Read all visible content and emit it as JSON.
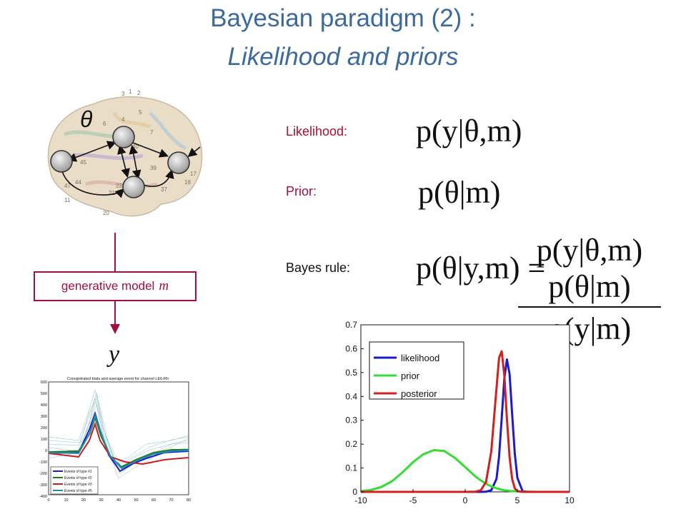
{
  "slide": {
    "title_line1": "Bayesian paradigm (2) :",
    "title_line2": "Likelihood and priors"
  },
  "labels": {
    "likelihood": "Likelihood:",
    "prior": "Prior:",
    "bayes": "Bayes rule:",
    "generative_model": "generative model",
    "generative_model_symbol": "m",
    "theta_symbol": "θ",
    "y_symbol": "y"
  },
  "formulas": {
    "likelihood": "p(y|θ,m)",
    "prior": "p(θ|m)",
    "bayes_lhs": "p(θ|y,m) =",
    "bayes_num": "p(y|θ,m) p(θ|m)",
    "bayes_den": "p(y|m)"
  },
  "colors": {
    "title": "#3d6a9c",
    "accent": "#a0103a",
    "likelihood": "#1a1ad0",
    "prior": "#33dd33",
    "posterior": "#d21f1f"
  },
  "brain_labels": [
    "3",
    "1",
    "2",
    "5",
    "4",
    "7",
    "6",
    "19",
    "17",
    "18",
    "37",
    "21",
    "20",
    "39",
    "40",
    "44",
    "45",
    "47",
    "11",
    "22"
  ],
  "eeg_plot": {
    "title": "Coregistrated trials and average event for channel LE6-Rh",
    "yticks": [
      "600",
      "500",
      "400",
      "300",
      "200",
      "100",
      "0",
      "-100",
      "-200",
      "-300",
      "-400"
    ],
    "xticks": [
      "0",
      "10",
      "20",
      "30",
      "40",
      "50",
      "60",
      "70",
      "80"
    ],
    "legend": [
      "Events of type #1",
      "Events of type #2",
      "Events of type #3",
      "Events of type #5"
    ]
  },
  "chart_data": {
    "type": "line",
    "title": "",
    "xlabel": "",
    "ylabel": "",
    "xlim": [
      -10,
      10
    ],
    "ylim": [
      0,
      0.7
    ],
    "xticks": [
      "-10",
      "-5",
      "0",
      "5",
      "10"
    ],
    "yticks": [
      "0",
      "0.1",
      "0.2",
      "0.3",
      "0.4",
      "0.5",
      "0.6",
      "0.7"
    ],
    "grid": false,
    "legend_position": "top-left",
    "x": [
      -10,
      -9,
      -8,
      -7,
      -6,
      -5,
      -4,
      -3,
      -2,
      -1,
      0,
      1,
      1.5,
      2,
      2.5,
      3,
      3.25,
      3.5,
      3.75,
      4,
      4.25,
      4.5,
      4.75,
      5,
      5.5,
      6,
      7,
      8,
      9,
      10
    ],
    "series": [
      {
        "name": "likelihood",
        "color": "#1a1ad0",
        "values": [
          0,
          0,
          0,
          0,
          0,
          0,
          0,
          0,
          0,
          0,
          0,
          0,
          0,
          0.001,
          0.007,
          0.054,
          0.148,
          0.309,
          0.476,
          0.555,
          0.494,
          0.326,
          0.161,
          0.059,
          0.003,
          0,
          0,
          0,
          0,
          0
        ]
      },
      {
        "name": "prior",
        "color": "#33dd33",
        "values": [
          0.003,
          0.008,
          0.021,
          0.045,
          0.082,
          0.124,
          0.158,
          0.175,
          0.171,
          0.143,
          0.104,
          0.064,
          0.048,
          0.034,
          0.023,
          0.015,
          0.012,
          0.009,
          0.007,
          0.006,
          0.004,
          0.003,
          0.003,
          0.002,
          0.001,
          0.001,
          0,
          0,
          0,
          0
        ]
      },
      {
        "name": "posterior",
        "color": "#d21f1f",
        "values": [
          0,
          0,
          0,
          0,
          0,
          0,
          0,
          0,
          0,
          0,
          0,
          0.001,
          0.007,
          0.042,
          0.17,
          0.433,
          0.562,
          0.589,
          0.487,
          0.306,
          0.147,
          0.054,
          0.015,
          0.003,
          0,
          0,
          0,
          0,
          0,
          0
        ]
      }
    ]
  }
}
